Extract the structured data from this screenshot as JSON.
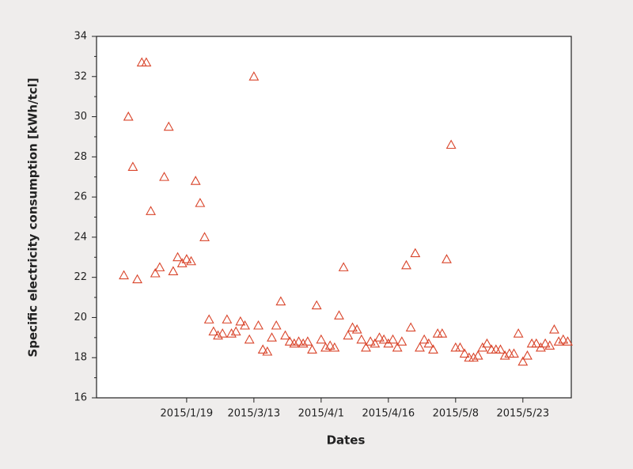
{
  "chart_data": {
    "type": "scatter",
    "x_label": "Dates",
    "y_label": "Specific electricity consumption [kWh/tcl]",
    "color": "#d9442a",
    "marker": "triangle-open",
    "x": [
      1,
      2,
      3,
      4,
      5,
      6,
      7,
      8,
      9,
      10,
      11,
      12,
      13,
      14,
      15,
      16,
      17,
      18,
      19,
      20,
      21,
      22,
      23,
      24,
      25,
      26,
      27,
      28,
      29,
      30,
      31,
      32,
      33,
      34,
      35,
      36,
      37,
      38,
      39,
      40,
      41,
      42,
      43,
      44,
      45,
      46,
      47,
      48,
      49,
      50,
      51,
      52,
      53,
      54,
      55,
      56,
      57,
      58,
      59,
      60,
      61,
      62,
      63,
      64,
      65,
      66,
      67,
      68,
      69,
      70,
      71,
      72,
      73,
      74,
      75,
      76,
      77,
      78,
      79,
      80,
      81,
      82,
      83,
      84,
      85,
      86,
      87,
      88,
      89,
      90,
      91,
      92,
      93,
      94,
      95,
      96,
      97,
      98,
      99,
      100
    ],
    "values": [
      22.1,
      30.0,
      27.5,
      21.9,
      32.7,
      32.7,
      25.3,
      22.2,
      22.5,
      27.0,
      29.5,
      22.3,
      23.0,
      22.7,
      22.9,
      22.8,
      26.8,
      25.7,
      24.0,
      19.9,
      19.3,
      19.1,
      19.2,
      19.9,
      19.2,
      19.3,
      19.8,
      19.6,
      18.9,
      32.0,
      19.6,
      18.4,
      18.3,
      19.0,
      19.6,
      20.8,
      19.1,
      18.8,
      18.7,
      18.8,
      18.7,
      18.8,
      18.4,
      20.6,
      18.9,
      18.5,
      18.6,
      18.5,
      20.1,
      22.5,
      19.1,
      19.5,
      19.4,
      18.9,
      18.5,
      18.8,
      18.7,
      19.0,
      18.9,
      18.7,
      18.9,
      18.5,
      18.8,
      22.6,
      19.5,
      23.2,
      18.5,
      18.9,
      18.7,
      18.4,
      19.2,
      19.2,
      22.9,
      28.6,
      18.5,
      18.5,
      18.2,
      18.0,
      18.0,
      18.1,
      18.5,
      18.7,
      18.4,
      18.4,
      18.4,
      18.1,
      18.2,
      18.2,
      19.2,
      17.8,
      18.1,
      18.7,
      18.7,
      18.5,
      18.7,
      18.6,
      19.4,
      18.8,
      18.9,
      18.8
    ],
    "xlim": [
      -5.1,
      100.8
    ],
    "xticks": [
      {
        "value": 15,
        "label": "2015/1/19"
      },
      {
        "value": 30,
        "label": "2015/3/13"
      },
      {
        "value": 45,
        "label": "2015/4/1"
      },
      {
        "value": 60,
        "label": "2015/4/16"
      },
      {
        "value": 75,
        "label": "2015/5/8"
      },
      {
        "value": 90,
        "label": "2015/5/23"
      }
    ],
    "ylim": [
      16,
      34
    ],
    "yticks": [
      16,
      18,
      20,
      22,
      24,
      26,
      28,
      30,
      32,
      34
    ]
  }
}
